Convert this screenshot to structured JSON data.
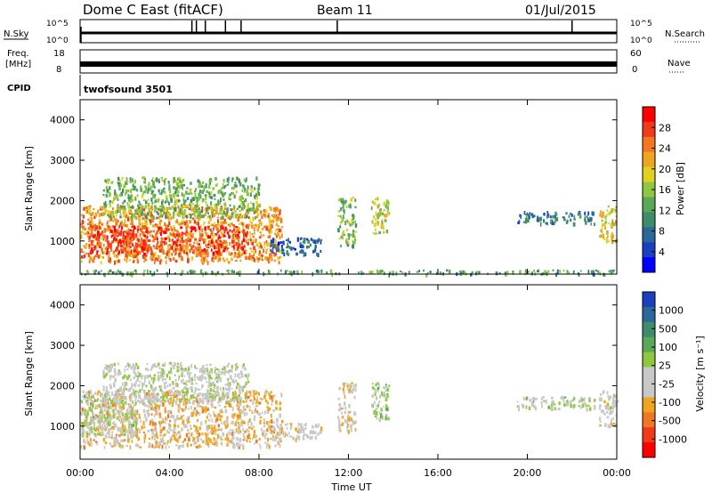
{
  "header": {
    "title": "Dome C East (fitACF)",
    "beam": "Beam 11",
    "date": "01/Jul/2015"
  },
  "top_panels": {
    "nsky": {
      "label": "N.Sky",
      "ticks": [
        "10^5",
        "10^0"
      ]
    },
    "nsearch": {
      "label": "N.Search",
      "ticks": [
        "10^5",
        "10^0"
      ]
    },
    "freq": {
      "label_line1": "Freq.",
      "label_line2": "[MHz]",
      "ticks": [
        "18",
        "8"
      ]
    },
    "nave": {
      "label": "Nave",
      "ticks": [
        "60",
        "0"
      ]
    },
    "cpid": {
      "label": "CPID",
      "program": "twofsound 3501"
    }
  },
  "power_panel": {
    "ylabel": "Slant Range [km]",
    "yticks": [
      "4000",
      "3000",
      "2000",
      "1000"
    ],
    "colorbar_label": "Power [dB]",
    "colorbar_ticks": [
      "28",
      "24",
      "20",
      "16",
      "12",
      "8",
      "4"
    ],
    "colorbar_colors": [
      "#ff0000",
      "#f03a1a",
      "#f07820",
      "#f0a520",
      "#e0d020",
      "#8fc840",
      "#5aa858",
      "#3f8c6a",
      "#2a6a9a",
      "#1a40c0",
      "#0000ff"
    ]
  },
  "velocity_panel": {
    "ylabel": "Slant Range [km]",
    "yticks": [
      "4000",
      "3000",
      "2000",
      "1000"
    ],
    "colorbar_label": "Velocity [m s⁻¹]",
    "colorbar_ticks": [
      "1000",
      "500",
      "100",
      "25",
      "-25",
      "-100",
      "-500",
      "-1000"
    ],
    "colorbar_colors": [
      "#1a40c0",
      "#2a6a9a",
      "#3f8c6a",
      "#5aa858",
      "#8fc840",
      "#c8c8c8",
      "#c8c8c8",
      "#f0a520",
      "#f07820",
      "#f03a1a",
      "#ff0000"
    ]
  },
  "xaxis": {
    "label": "Time UT",
    "ticks": [
      "00:00",
      "04:00",
      "08:00",
      "12:00",
      "16:00",
      "20:00",
      "00:00"
    ]
  },
  "chart_data": [
    {
      "type": "heatmap",
      "name": "power",
      "x_range_hours": [
        0,
        24
      ],
      "y_range_km": [
        180,
        4500
      ],
      "value_range_db": [
        0,
        32
      ],
      "regions": [
        {
          "t0": 0.0,
          "t1": 9.0,
          "r0": 500,
          "r1": 1900,
          "value": 24
        },
        {
          "t0": 0.3,
          "t1": 7.5,
          "r0": 700,
          "r1": 1400,
          "value": 29
        },
        {
          "t0": 1.0,
          "t1": 8.0,
          "r0": 1600,
          "r1": 2600,
          "value": 14
        },
        {
          "t0": 8.5,
          "t1": 10.8,
          "r0": 700,
          "r1": 1100,
          "value": 6
        },
        {
          "t0": 11.5,
          "t1": 12.3,
          "r0": 900,
          "r1": 2100,
          "value": 14
        },
        {
          "t0": 13.0,
          "t1": 13.8,
          "r0": 1200,
          "r1": 2100,
          "value": 18
        },
        {
          "t0": 23.2,
          "t1": 24.0,
          "r0": 1000,
          "r1": 1900,
          "value": 20
        },
        {
          "t0": 19.5,
          "t1": 23.0,
          "r0": 1450,
          "r1": 1750,
          "value": 8
        },
        {
          "t0": 0.0,
          "t1": 24.0,
          "r0": 200,
          "r1": 300,
          "value": 12
        }
      ]
    },
    {
      "type": "heatmap",
      "name": "velocity",
      "x_range_hours": [
        0,
        24
      ],
      "y_range_km": [
        180,
        4500
      ],
      "value_range_ms": [
        -1000,
        1000
      ],
      "regions": [
        {
          "t0": 0.0,
          "t1": 9.0,
          "r0": 500,
          "r1": 1900,
          "value": -300
        },
        {
          "t0": 0.0,
          "t1": 2.5,
          "r0": 800,
          "r1": 1800,
          "value": 60
        },
        {
          "t0": 1.0,
          "t1": 7.5,
          "r0": 1600,
          "r1": 2600,
          "value": 0
        },
        {
          "t0": 8.5,
          "t1": 10.8,
          "r0": 700,
          "r1": 1100,
          "value": -150
        },
        {
          "t0": 11.5,
          "t1": 12.3,
          "r0": 900,
          "r1": 2100,
          "value": -200
        },
        {
          "t0": 13.0,
          "t1": 13.8,
          "r0": 1200,
          "r1": 2100,
          "value": 120
        },
        {
          "t0": 23.2,
          "t1": 24.0,
          "r0": 1000,
          "r1": 1900,
          "value": -120
        },
        {
          "t0": 19.5,
          "t1": 23.0,
          "r0": 1450,
          "r1": 1750,
          "value": 80
        }
      ]
    }
  ]
}
